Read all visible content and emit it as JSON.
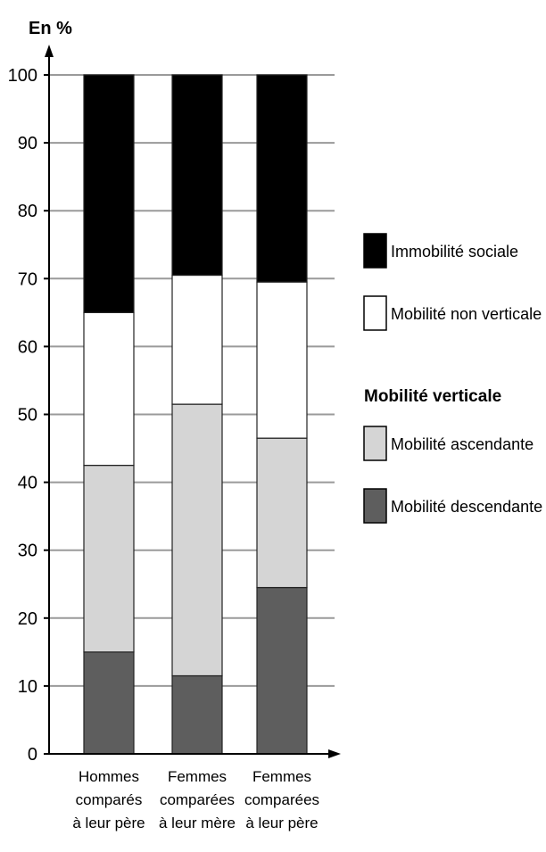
{
  "chart_data": {
    "type": "bar",
    "stacked": true,
    "unit_label": "En %",
    "ylim": [
      0,
      100
    ],
    "yticks": [
      0,
      10,
      20,
      30,
      40,
      50,
      60,
      70,
      80,
      90,
      100
    ],
    "grid": true,
    "categories": [
      [
        "Hommes",
        "comparés",
        "à leur père"
      ],
      [
        "Femmes",
        "comparées",
        "à leur mère"
      ],
      [
        "Femmes",
        "comparées",
        "à leur père"
      ]
    ],
    "series": [
      {
        "name": "Mobilité descendante",
        "color": "#5e5e5e",
        "values": [
          15,
          11.5,
          24.5
        ]
      },
      {
        "name": "Mobilité ascendante",
        "color": "#d5d5d5",
        "values": [
          27.5,
          40,
          22
        ]
      },
      {
        "name": "Mobilité non verticale",
        "color": "#ffffff",
        "values": [
          22.5,
          19,
          23
        ]
      },
      {
        "name": "Immobilité sociale",
        "color": "#000000",
        "values": [
          35,
          29.5,
          30.5
        ]
      }
    ],
    "legend": {
      "position": "right",
      "groups": [
        {
          "heading": "",
          "items": [
            "Immobilité sociale",
            "Mobilité non verticale"
          ]
        },
        {
          "heading": "Mobilité verticale",
          "items": [
            "Mobilité ascendante",
            "Mobilité descendante"
          ]
        }
      ]
    }
  }
}
